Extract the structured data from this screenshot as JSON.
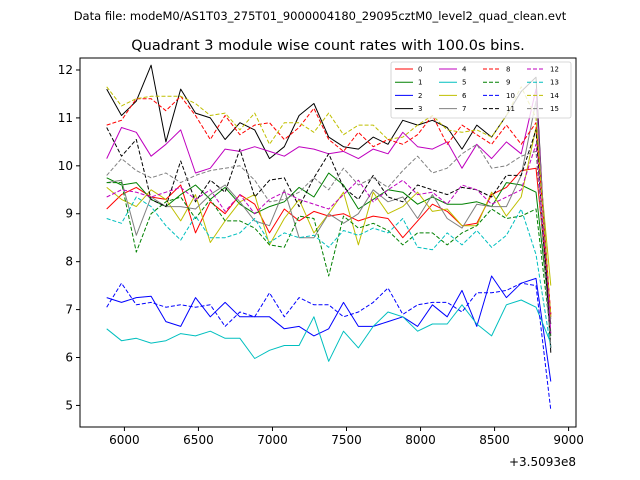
{
  "suptitle": "Data file: modeM0/AS1T03_275T01_9000004180_29095cztM0_level2_quad_clean.evt",
  "chart_data": {
    "type": "line",
    "title": "Quadrant 3 module wise count rates with 100.0s bins.",
    "xlabel": "",
    "ylabel": "",
    "x_offset_label": "+3.5093e8",
    "xlim": [
      5700,
      9050
    ],
    "ylim": [
      4.55,
      12.25
    ],
    "x_ticks": [
      6000,
      6500,
      7000,
      7500,
      8000,
      8500,
      9000
    ],
    "y_ticks": [
      5,
      6,
      7,
      8,
      9,
      10,
      11,
      12
    ],
    "grid": false,
    "legend_position": "top-right",
    "x": [
      5880,
      5980,
      6080,
      6180,
      6280,
      6380,
      6480,
      6580,
      6680,
      6780,
      6880,
      6980,
      7080,
      7180,
      7280,
      7380,
      7480,
      7580,
      7680,
      7780,
      7880,
      7980,
      8080,
      8180,
      8280,
      8380,
      8480,
      8580,
      8680,
      8780,
      8880
    ],
    "series": [
      {
        "name": "0",
        "color": "#ff0000",
        "dash": "solid",
        "values": [
          9.1,
          9.4,
          9.55,
          9.35,
          9.3,
          9.6,
          8.6,
          9.25,
          9.0,
          9.4,
          9.2,
          8.6,
          9.1,
          8.85,
          9.05,
          8.95,
          9.0,
          8.85,
          8.95,
          8.9,
          8.5,
          8.85,
          9.2,
          9.05,
          8.75,
          8.8,
          9.4,
          9.55,
          9.9,
          9.95,
          6.9
        ]
      },
      {
        "name": "1",
        "color": "#008000",
        "dash": "solid",
        "values": [
          9.75,
          9.6,
          9.65,
          9.3,
          9.15,
          9.4,
          9.6,
          9.3,
          9.55,
          9.2,
          9.0,
          9.15,
          9.25,
          9.55,
          9.35,
          9.85,
          9.6,
          9.1,
          9.3,
          9.5,
          9.45,
          9.2,
          9.35,
          9.2,
          9.2,
          9.25,
          9.15,
          9.65,
          9.6,
          9.45,
          6.7
        ]
      },
      {
        "name": "2",
        "color": "#0000ff",
        "dash": "solid",
        "values": [
          7.25,
          7.15,
          7.25,
          7.28,
          6.75,
          6.65,
          7.25,
          6.85,
          7.15,
          6.85,
          6.85,
          6.85,
          6.6,
          6.65,
          6.45,
          6.6,
          7.15,
          6.65,
          6.65,
          6.75,
          6.85,
          6.65,
          7.1,
          6.85,
          7.4,
          6.65,
          7.7,
          7.25,
          7.55,
          7.65,
          5.5
        ]
      },
      {
        "name": "3",
        "color": "#000000",
        "dash": "solid",
        "values": [
          11.6,
          11.05,
          11.35,
          12.1,
          10.5,
          11.6,
          11.1,
          11.0,
          10.55,
          10.9,
          10.75,
          10.15,
          10.4,
          11.05,
          11.3,
          10.6,
          10.4,
          10.35,
          10.6,
          10.45,
          10.95,
          10.85,
          10.95,
          10.8,
          10.35,
          10.85,
          10.6,
          11.05,
          11.55,
          11.85,
          6.1
        ]
      },
      {
        "name": "4",
        "color": "#bf00bf",
        "dash": "solid",
        "values": [
          10.15,
          10.8,
          10.7,
          10.2,
          10.45,
          10.75,
          9.85,
          9.95,
          10.35,
          10.3,
          10.4,
          10.3,
          10.2,
          10.4,
          10.35,
          10.25,
          10.3,
          10.15,
          10.35,
          10.25,
          10.7,
          10.4,
          10.35,
          10.5,
          9.95,
          10.45,
          10.15,
          10.5,
          10.25,
          11.6,
          6.5
        ]
      },
      {
        "name": "5",
        "color": "#00bfbf",
        "dash": "solid",
        "values": [
          6.6,
          6.35,
          6.4,
          6.3,
          6.35,
          6.5,
          6.45,
          6.55,
          6.4,
          6.4,
          5.98,
          6.15,
          6.25,
          6.25,
          6.85,
          5.92,
          6.55,
          6.2,
          6.65,
          6.95,
          6.85,
          6.55,
          6.7,
          6.7,
          7.1,
          6.7,
          6.45,
          7.1,
          7.2,
          7.05,
          6.3
        ]
      },
      {
        "name": "6",
        "color": "#bfbf00",
        "dash": "solid",
        "values": [
          9.55,
          9.3,
          9.15,
          9.5,
          9.3,
          8.85,
          9.4,
          8.4,
          8.85,
          9.25,
          9.4,
          8.35,
          8.9,
          9.3,
          8.6,
          9.0,
          9.45,
          8.35,
          9.45,
          9.0,
          9.15,
          9.45,
          9.05,
          9.1,
          8.75,
          8.75,
          9.45,
          8.95,
          9.35,
          10.8,
          7.5
        ]
      },
      {
        "name": "7",
        "color": "#808080",
        "dash": "solid",
        "values": [
          9.65,
          9.7,
          8.55,
          9.35,
          9.15,
          9.15,
          9.1,
          9.4,
          9.6,
          9.25,
          8.85,
          8.75,
          9.5,
          8.5,
          8.5,
          9.0,
          8.8,
          9.0,
          9.5,
          9.25,
          9.35,
          8.9,
          9.4,
          8.9,
          8.7,
          9.2,
          9.15,
          9.15,
          9.8,
          11.35,
          6.8
        ]
      },
      {
        "name": "8",
        "color": "#ff0000",
        "dash": "dashed",
        "values": [
          10.85,
          10.95,
          11.4,
          11.4,
          11.15,
          11.45,
          11.05,
          10.55,
          11.05,
          10.65,
          10.85,
          10.9,
          10.55,
          10.8,
          11.2,
          10.55,
          10.3,
          10.7,
          10.4,
          10.55,
          10.45,
          10.65,
          11.05,
          10.45,
          10.85,
          10.65,
          10.45,
          10.85,
          10.45,
          10.9,
          6.9
        ]
      },
      {
        "name": "9",
        "color": "#008000",
        "dash": "dashed",
        "values": [
          9.65,
          9.65,
          8.2,
          9.0,
          9.25,
          9.35,
          8.9,
          9.3,
          8.85,
          8.85,
          8.7,
          8.35,
          8.3,
          8.95,
          8.9,
          7.7,
          8.95,
          8.7,
          8.8,
          8.65,
          8.35,
          8.6,
          8.6,
          8.35,
          8.6,
          8.75,
          9.1,
          8.9,
          8.95,
          9.1,
          6.45
        ]
      },
      {
        "name": "10",
        "color": "#0000ff",
        "dash": "dashed",
        "values": [
          7.05,
          7.55,
          7.1,
          7.15,
          7.05,
          7.1,
          7.05,
          7.1,
          6.65,
          6.95,
          6.85,
          7.35,
          6.85,
          7.25,
          7.1,
          7.1,
          6.85,
          6.95,
          7.15,
          7.45,
          6.9,
          7.1,
          7.15,
          7.15,
          6.95,
          7.35,
          7.35,
          7.4,
          7.55,
          7.5,
          4.9
        ]
      },
      {
        "name": "11",
        "color": "#000000",
        "dash": "dashed",
        "values": [
          10.8,
          10.2,
          10.55,
          9.3,
          9.15,
          10.1,
          9.25,
          9.7,
          9.45,
          10.35,
          9.35,
          9.7,
          9.75,
          9.15,
          9.75,
          10.25,
          9.55,
          9.3,
          9.8,
          9.35,
          9.25,
          9.6,
          9.5,
          9.4,
          9.55,
          9.5,
          9.35,
          9.8,
          9.8,
          10.75,
          6.2
        ]
      },
      {
        "name": "12",
        "color": "#bf00bf",
        "dash": "dashed",
        "values": [
          9.35,
          9.5,
          9.45,
          9.35,
          9.45,
          9.55,
          9.3,
          9.5,
          9.05,
          9.4,
          9.0,
          9.3,
          9.45,
          9.3,
          9.2,
          9.1,
          9.4,
          9.7,
          9.25,
          9.5,
          9.7,
          9.4,
          9.45,
          9.2,
          9.6,
          9.5,
          9.2,
          9.35,
          9.5,
          10.45,
          6.85
        ]
      },
      {
        "name": "13",
        "color": "#00bfbf",
        "dash": "dashed",
        "values": [
          8.9,
          8.8,
          9.35,
          9.15,
          8.75,
          8.45,
          8.95,
          8.5,
          8.5,
          8.6,
          8.9,
          8.4,
          8.6,
          8.5,
          8.55,
          8.3,
          8.65,
          8.55,
          8.7,
          8.6,
          8.9,
          8.3,
          8.25,
          8.6,
          8.35,
          8.65,
          8.3,
          8.55,
          9.1,
          8.15,
          6.2
        ]
      },
      {
        "name": "14",
        "color": "#bfbf00",
        "dash": "dashed",
        "values": [
          11.65,
          11.25,
          11.4,
          11.45,
          11.45,
          11.45,
          11.3,
          11.05,
          11.1,
          10.75,
          11.1,
          10.45,
          10.9,
          10.9,
          10.7,
          11.1,
          10.65,
          10.85,
          10.85,
          10.55,
          10.6,
          10.85,
          11.05,
          10.75,
          10.7,
          10.75,
          10.6,
          11.05,
          11.65,
          11.0,
          6.85
        ]
      },
      {
        "name": "15",
        "color": "#808080",
        "dash": "dashed",
        "values": [
          9.8,
          10.15,
          9.9,
          9.75,
          9.85,
          9.65,
          9.8,
          9.9,
          9.95,
          10.0,
          9.7,
          9.25,
          9.3,
          9.45,
          9.75,
          9.5,
          9.95,
          9.6,
          9.75,
          9.55,
          9.9,
          10.2,
          9.85,
          9.95,
          10.25,
          10.45,
          9.95,
          10.0,
          10.2,
          10.3,
          6.2
        ]
      }
    ]
  }
}
